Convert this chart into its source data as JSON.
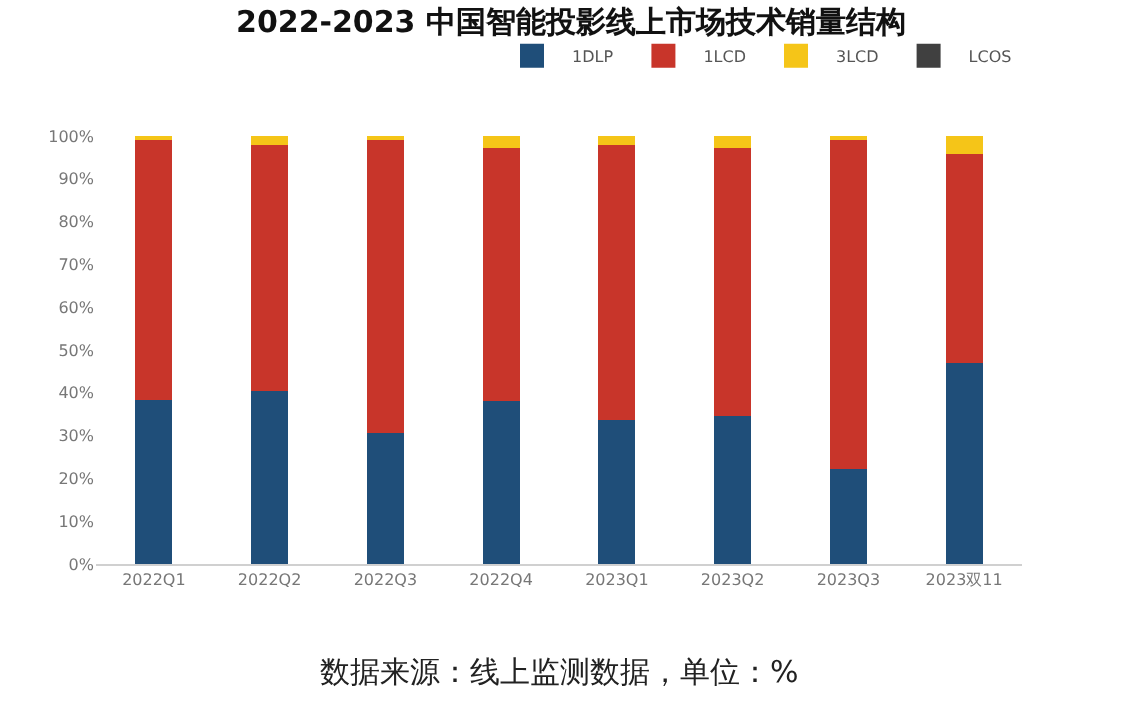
{
  "chart_data": {
    "type": "bar",
    "title": "2022-2023 中国智能投影线上市场技术销量结构",
    "stacked": true,
    "categories": [
      "2022Q1",
      "2022Q2",
      "2022Q3",
      "2022Q4",
      "2023Q1",
      "2023Q2",
      "2023Q3",
      "2023双11"
    ],
    "series": [
      {
        "name": "1DLP",
        "color": "#1f4e79",
        "values": [
          38.4,
          40.5,
          30.6,
          38.2,
          33.7,
          34.6,
          22.1,
          46.9
        ]
      },
      {
        "name": "1LCD",
        "color": "#c8352a",
        "values": [
          60.6,
          57.4,
          68.4,
          58.9,
          64.2,
          62.5,
          77.0,
          48.9
        ]
      },
      {
        "name": "3LCD",
        "color": "#f5c518",
        "values": [
          1.0,
          2.1,
          1.0,
          2.9,
          2.1,
          2.9,
          0.9,
          4.2
        ]
      },
      {
        "name": "LCOS",
        "color": "#404040",
        "values": [
          0,
          0,
          0,
          0,
          0,
          0,
          0,
          0
        ]
      }
    ],
    "ylim": [
      0,
      100
    ],
    "yticks": [
      {
        "value": 0,
        "label": "0%"
      },
      {
        "value": 10,
        "label": "10%"
      },
      {
        "value": 20,
        "label": "20%"
      },
      {
        "value": 30,
        "label": "30%"
      },
      {
        "value": 40,
        "label": "40%"
      },
      {
        "value": 50,
        "label": "50%"
      },
      {
        "value": 60,
        "label": "60%"
      },
      {
        "value": 70,
        "label": "70%"
      },
      {
        "value": 80,
        "label": "80%"
      },
      {
        "value": 90,
        "label": "90%"
      },
      {
        "value": 100,
        "label": "100%"
      }
    ],
    "grid": false,
    "legend": "top right",
    "annotations": [
      "数据来源：线上监测数据，单位：%"
    ]
  }
}
